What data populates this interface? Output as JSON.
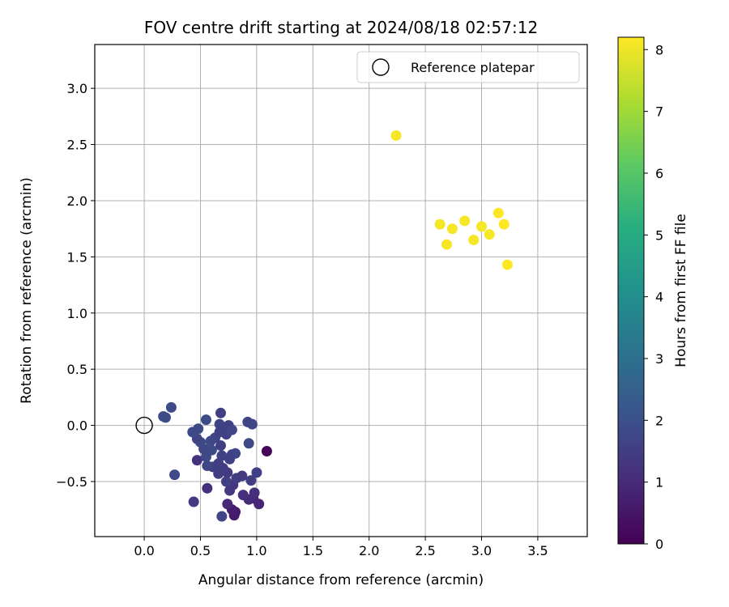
{
  "chart_data": {
    "type": "scatter",
    "title": "FOV centre drift starting at 2024/08/18 02:57:12",
    "xlabel": "Angular distance from reference (arcmin)",
    "ylabel": "Rotation from reference (arcmin)",
    "xlim": [
      -0.44,
      3.94
    ],
    "ylim": [
      -0.99,
      3.39
    ],
    "xticks": [
      "0.0",
      "0.5",
      "1.0",
      "1.5",
      "2.0",
      "2.5",
      "3.0",
      "3.5"
    ],
    "yticks": [
      "−0.5",
      "0.0",
      "0.5",
      "1.0",
      "1.5",
      "2.0",
      "2.5",
      "3.0"
    ],
    "grid": true,
    "legend": {
      "placement": "top-right",
      "entries": [
        "Reference platepar"
      ]
    },
    "reference_point": {
      "x": 0.0,
      "y": 0.0,
      "marker": "hollow-circle",
      "color": "#000000"
    },
    "colorbar": {
      "label": "Hours from first FF file",
      "min": 0,
      "max": 8.2,
      "ticks": [
        "0",
        "1",
        "2",
        "3",
        "4",
        "5",
        "6",
        "7",
        "8"
      ],
      "colormap": "viridis"
    },
    "points": [
      {
        "x": 1.09,
        "y": -0.23,
        "t": 0.05
      },
      {
        "x": 0.8,
        "y": -0.8,
        "t": 0.6
      },
      {
        "x": 0.81,
        "y": -0.77,
        "t": 0.6
      },
      {
        "x": 0.78,
        "y": -0.75,
        "t": 0.7
      },
      {
        "x": 0.97,
        "y": -0.65,
        "t": 0.9
      },
      {
        "x": 1.02,
        "y": -0.7,
        "t": 0.9
      },
      {
        "x": 0.74,
        "y": -0.7,
        "t": 1.0
      },
      {
        "x": 0.93,
        "y": -0.66,
        "t": 1.0
      },
      {
        "x": 0.88,
        "y": -0.62,
        "t": 1.1
      },
      {
        "x": 0.98,
        "y": -0.6,
        "t": 1.1
      },
      {
        "x": 0.56,
        "y": -0.56,
        "t": 1.1
      },
      {
        "x": 0.47,
        "y": -0.31,
        "t": 1.2
      },
      {
        "x": 0.44,
        "y": -0.68,
        "t": 1.4
      },
      {
        "x": 0.69,
        "y": -0.81,
        "t": 1.7
      },
      {
        "x": 0.27,
        "y": -0.44,
        "t": 1.8
      },
      {
        "x": 0.76,
        "y": -0.58,
        "t": 1.4
      },
      {
        "x": 0.79,
        "y": -0.53,
        "t": 1.3
      },
      {
        "x": 0.82,
        "y": -0.47,
        "t": 1.5
      },
      {
        "x": 0.87,
        "y": -0.45,
        "t": 1.4
      },
      {
        "x": 0.95,
        "y": -0.49,
        "t": 1.5
      },
      {
        "x": 1.0,
        "y": -0.42,
        "t": 1.6
      },
      {
        "x": 0.73,
        "y": -0.5,
        "t": 1.6
      },
      {
        "x": 0.74,
        "y": -0.42,
        "t": 1.4
      },
      {
        "x": 0.7,
        "y": -0.38,
        "t": 1.5
      },
      {
        "x": 0.66,
        "y": -0.34,
        "t": 1.5
      },
      {
        "x": 0.61,
        "y": -0.37,
        "t": 1.6
      },
      {
        "x": 0.56,
        "y": -0.36,
        "t": 1.7
      },
      {
        "x": 0.55,
        "y": -0.28,
        "t": 1.8
      },
      {
        "x": 0.53,
        "y": -0.21,
        "t": 1.7
      },
      {
        "x": 0.5,
        "y": -0.15,
        "t": 1.8
      },
      {
        "x": 0.47,
        "y": -0.12,
        "t": 1.7
      },
      {
        "x": 0.43,
        "y": -0.06,
        "t": 1.8
      },
      {
        "x": 0.48,
        "y": -0.03,
        "t": 1.8
      },
      {
        "x": 0.55,
        "y": 0.05,
        "t": 1.9
      },
      {
        "x": 0.59,
        "y": -0.14,
        "t": 1.8
      },
      {
        "x": 0.6,
        "y": -0.22,
        "t": 1.8
      },
      {
        "x": 0.63,
        "y": -0.11,
        "t": 1.7
      },
      {
        "x": 0.67,
        "y": -0.06,
        "t": 1.6
      },
      {
        "x": 0.67,
        "y": 0.01,
        "t": 1.7
      },
      {
        "x": 0.68,
        "y": 0.11,
        "t": 1.5
      },
      {
        "x": 0.7,
        "y": -0.02,
        "t": 1.6
      },
      {
        "x": 0.73,
        "y": -0.08,
        "t": 1.6
      },
      {
        "x": 0.68,
        "y": -0.18,
        "t": 1.5
      },
      {
        "x": 0.75,
        "y": 0.0,
        "t": 1.6
      },
      {
        "x": 0.78,
        "y": -0.04,
        "t": 1.7
      },
      {
        "x": 0.78,
        "y": -0.26,
        "t": 1.6
      },
      {
        "x": 0.81,
        "y": -0.25,
        "t": 1.7
      },
      {
        "x": 0.76,
        "y": -0.3,
        "t": 1.6
      },
      {
        "x": 0.92,
        "y": 0.03,
        "t": 1.7
      },
      {
        "x": 0.96,
        "y": 0.01,
        "t": 1.7
      },
      {
        "x": 0.93,
        "y": -0.16,
        "t": 1.8
      },
      {
        "x": 0.66,
        "y": -0.43,
        "t": 1.5
      },
      {
        "x": 0.69,
        "y": -0.27,
        "t": 1.6
      },
      {
        "x": 0.17,
        "y": 0.08,
        "t": 1.9
      },
      {
        "x": 0.19,
        "y": 0.07,
        "t": 1.9
      },
      {
        "x": 0.24,
        "y": 0.16,
        "t": 1.9
      },
      {
        "x": 2.24,
        "y": 2.58,
        "t": 8.1
      },
      {
        "x": 2.63,
        "y": 1.79,
        "t": 8.1
      },
      {
        "x": 2.74,
        "y": 1.75,
        "t": 8.1
      },
      {
        "x": 2.85,
        "y": 1.82,
        "t": 8.1
      },
      {
        "x": 2.69,
        "y": 1.61,
        "t": 8.1
      },
      {
        "x": 2.93,
        "y": 1.65,
        "t": 8.1
      },
      {
        "x": 3.0,
        "y": 1.77,
        "t": 8.1
      },
      {
        "x": 3.07,
        "y": 1.7,
        "t": 8.1
      },
      {
        "x": 3.15,
        "y": 1.89,
        "t": 8.2
      },
      {
        "x": 3.2,
        "y": 1.79,
        "t": 8.2
      },
      {
        "x": 3.23,
        "y": 1.43,
        "t": 8.2
      }
    ]
  }
}
